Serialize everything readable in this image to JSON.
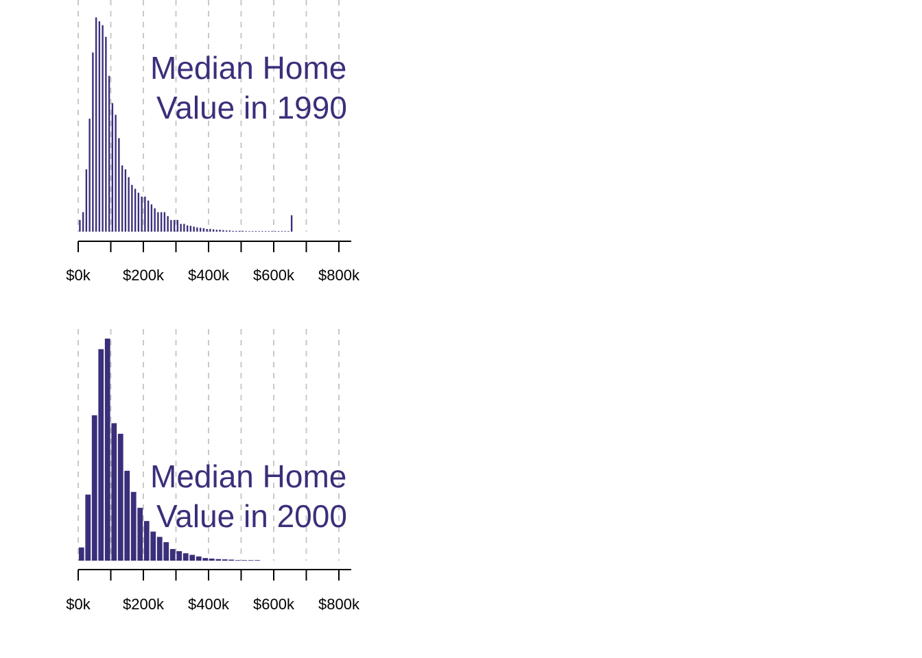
{
  "colors": {
    "bar": "#3a2f7a",
    "grid": "#c8c8c8",
    "axis": "#000000",
    "title": "#3a2f7a",
    "background": "#ffffff"
  },
  "chart_data": [
    {
      "type": "bar",
      "title_lines": [
        "Median Home",
        "Value in 1990"
      ],
      "xlabel": "",
      "ylabel": "",
      "xlim": [
        0,
        840000
      ],
      "grid": true,
      "grid_style": "dashed vertical lines every $100k",
      "x_ticks": [
        0,
        100000,
        200000,
        300000,
        400000,
        500000,
        600000,
        700000,
        800000
      ],
      "x_tick_labels": [
        {
          "value": 0,
          "label": "$0k"
        },
        {
          "value": 200000,
          "label": "$200k"
        },
        {
          "value": 400000,
          "label": "$400k"
        },
        {
          "value": 600000,
          "label": "$600k"
        },
        {
          "value": 800000,
          "label": "$800k"
        }
      ],
      "bin_width": 10000,
      "x_start": 0,
      "values": [
        3,
        5,
        16,
        29,
        46,
        55,
        54,
        53,
        50,
        40,
        33,
        30,
        24,
        17,
        16,
        14,
        12,
        11,
        10,
        9,
        9,
        8,
        7,
        6,
        5,
        5,
        5,
        4,
        3,
        3,
        3,
        2,
        2,
        1.6,
        1.5,
        1.3,
        1.1,
        1,
        0.9,
        0.7,
        0.7,
        0.6,
        0.5,
        0.5,
        0.4,
        0.3,
        0.3,
        0.2,
        0.2,
        0.2,
        0.2,
        0.15,
        0.1,
        0.1,
        0.1,
        0.1,
        0.1,
        0.1,
        0.1,
        0.1,
        0.1,
        0.1,
        0.1,
        0.1,
        0.1,
        4.2
      ],
      "ylim": [
        0,
        57
      ]
    },
    {
      "type": "bar",
      "title_lines": [
        "Median Home",
        "Value in 2000"
      ],
      "xlabel": "",
      "ylabel": "",
      "xlim": [
        0,
        840000
      ],
      "grid": true,
      "grid_style": "dashed vertical lines every $100k",
      "x_ticks": [
        0,
        100000,
        200000,
        300000,
        400000,
        500000,
        600000,
        700000,
        800000
      ],
      "x_tick_labels": [
        {
          "value": 0,
          "label": "$0k"
        },
        {
          "value": 200000,
          "label": "$200k"
        },
        {
          "value": 400000,
          "label": "$400k"
        },
        {
          "value": 600000,
          "label": "$600k"
        },
        {
          "value": 800000,
          "label": "$800k"
        }
      ],
      "bin_width": 20000,
      "x_start": 0,
      "values": [
        2.5,
        12.5,
        27.5,
        40,
        42,
        26,
        24,
        17,
        13,
        10,
        7.5,
        5.5,
        4.5,
        3.5,
        2.2,
        1.8,
        1.4,
        1.1,
        0.8,
        0.5,
        0.4,
        0.3,
        0.25,
        0.2,
        0.1,
        0.1,
        0.1,
        0.1
      ],
      "ylim": [
        0,
        42
      ]
    }
  ]
}
